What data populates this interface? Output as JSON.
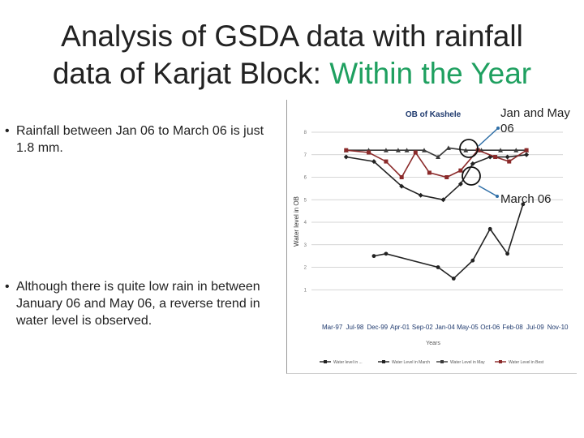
{
  "title": {
    "line1": "Analysis of GSDA data with rainfall",
    "line2_prefix": "data of Karjat Block: ",
    "line2_highlight": "Within the Year"
  },
  "bullets": [
    {
      "marker": "•",
      "text": "Rainfall  between  Jan 06 to March 06 is just 1.8 mm."
    },
    {
      "marker": "•",
      "text": "Although there is quite low rain in between January 06 and May 06, a reverse trend in water level is observed."
    }
  ],
  "callouts": {
    "jan_may": "Jan and May 06",
    "march": "March 06"
  },
  "colors": {
    "title_highlight": "#1fa060",
    "series_post": "#222222",
    "series_march": "#222222",
    "series_may": "#3a3a3a",
    "series_best": "#8b2a2a",
    "callout_arrow": "#2e6ea6"
  },
  "chart_data": {
    "type": "line",
    "title": "OB of Kashele",
    "xlabel": "Years",
    "ylabel": "Water level in OB",
    "categories": [
      "Mar-97",
      "Jul-98",
      "Dec-99",
      "Apr-01",
      "Sep-02",
      "Jan-04",
      "May-05",
      "Oct-06",
      "Feb-08",
      "Jul-09",
      "Nov-10"
    ],
    "yticks": [
      "1",
      "2",
      "3",
      "4",
      "5",
      "6",
      "7",
      "8"
    ],
    "ylim": [
      0,
      8
    ],
    "grid": false,
    "legend_position": "bottom",
    "series": [
      {
        "name": "Water level in ...",
        "marker": "circle",
        "x": [
          3.6,
          4.3,
          7.3,
          8.2,
          9.3,
          10.3,
          11.3,
          12.2,
          13.3,
          14.2
        ],
        "y": [
          2.5,
          2.6,
          2.0,
          1.5,
          2.3,
          3.7,
          2.6,
          4.8,
          null,
          null
        ]
      },
      {
        "name": "Water Level in March",
        "marker": "diamond",
        "x": [
          2.0,
          3.6,
          5.2,
          6.3,
          7.6,
          8.6,
          9.3,
          10.3,
          11.3,
          12.4
        ],
        "y": [
          6.9,
          6.7,
          5.6,
          5.2,
          5.0,
          5.7,
          6.6,
          6.9,
          6.9,
          7.0
        ]
      },
      {
        "name": "Water Level in May",
        "marker": "triangle",
        "x": [
          2.0,
          3.3,
          4.3,
          5.0,
          5.5,
          6.5,
          7.3,
          7.9,
          8.9,
          9.8,
          10.9,
          11.8,
          12.4
        ],
        "y": [
          7.2,
          7.2,
          7.2,
          7.2,
          7.2,
          7.2,
          6.9,
          7.3,
          7.2,
          7.2,
          7.2,
          7.2,
          7.2
        ]
      },
      {
        "name": "Water Level in Best",
        "marker": "square",
        "x": [
          2.0,
          3.3,
          4.3,
          5.2,
          6.0,
          6.8,
          7.8,
          8.6,
          9.6,
          10.6,
          11.4,
          12.4
        ],
        "y": [
          7.2,
          7.1,
          6.7,
          6.0,
          7.1,
          6.2,
          6.0,
          6.3,
          7.2,
          6.9,
          6.7,
          7.2
        ]
      }
    ]
  }
}
